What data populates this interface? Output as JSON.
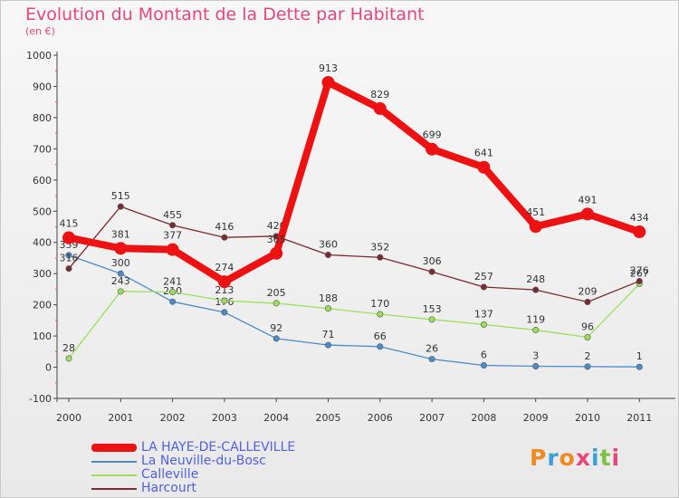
{
  "title": "Evolution du Montant de la Dette par Habitant",
  "subtitle": "(en €)",
  "logo": {
    "text": "Proxiti",
    "colors": [
      "#f08a20",
      "#3aa0d8",
      "#f08a20",
      "#e8467a",
      "#3aa0d8",
      "#7cc242",
      "#e8467a"
    ]
  },
  "chart_data": {
    "type": "line",
    "title": "Evolution du Montant de la Dette par Habitant",
    "ylabel": "(en €)",
    "xlabel": "",
    "x": [
      "2000",
      "2001",
      "2002",
      "2003",
      "2004",
      "2005",
      "2006",
      "2007",
      "2008",
      "2009",
      "2010",
      "2011"
    ],
    "ylim": [
      -100,
      1000
    ],
    "yticks": [
      "-100",
      "0",
      "100",
      "200",
      "300",
      "400",
      "500",
      "600",
      "700",
      "800",
      "900",
      "1000"
    ],
    "grid": false,
    "legend": "bottom",
    "series": [
      {
        "name": "LA HAYE-DE-CALLEVILLE",
        "color": "#ee1111",
        "values": [
          415,
          381,
          377,
          274,
          365,
          913,
          829,
          699,
          641,
          451,
          491,
          434
        ],
        "labels": [
          "415",
          "381",
          "377",
          "274",
          "365",
          "913",
          "829",
          "699",
          "641",
          "451",
          "491",
          "434"
        ]
      },
      {
        "name": "La Neuville-du-Bosc",
        "color": "#4a8cc8",
        "values": [
          359,
          300,
          210,
          176,
          92,
          71,
          66,
          26,
          6,
          3,
          2,
          1
        ],
        "labels": [
          "359",
          "300",
          "210",
          "176",
          "92",
          "71",
          "66",
          "26",
          "6",
          "3",
          "2",
          "1"
        ]
      },
      {
        "name": "Calleville",
        "color": "#99e05a",
        "values": [
          28,
          243,
          241,
          213,
          205,
          188,
          170,
          153,
          137,
          119,
          96,
          267
        ],
        "labels": [
          "28",
          "243",
          "241",
          "213",
          "205",
          "188",
          "170",
          "153",
          "137",
          "119",
          "96",
          "267"
        ]
      },
      {
        "name": "Harcourt",
        "color": "#7a2a30",
        "values": [
          316,
          515,
          455,
          416,
          420,
          360,
          352,
          306,
          257,
          248,
          209,
          276
        ],
        "labels": [
          "316",
          "515",
          "455",
          "416",
          "420",
          "360",
          "352",
          "306",
          "257",
          "248",
          "209",
          "276"
        ]
      }
    ]
  }
}
